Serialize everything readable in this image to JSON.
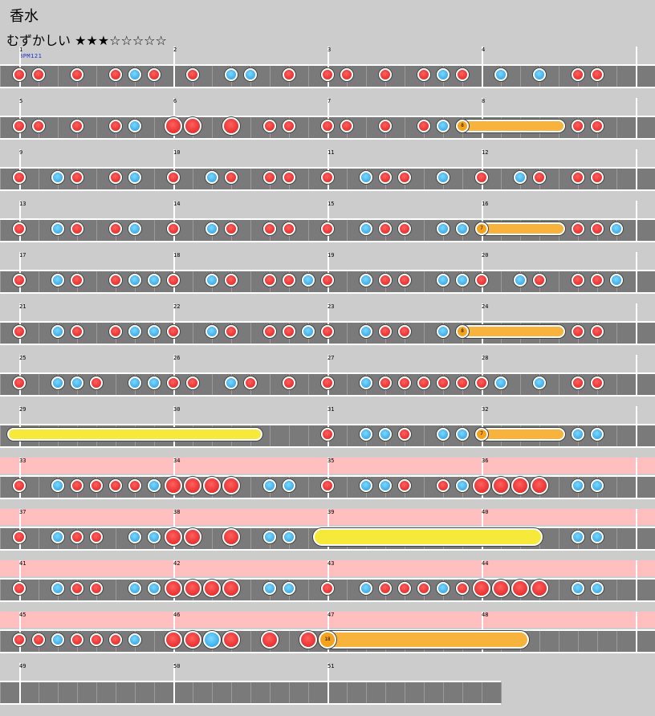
{
  "song_title": "香水",
  "difficulty_label": "むずかしい",
  "difficulty_stars": "★★★☆☆☆☆☆",
  "bpm_label": "BPM121",
  "colors": {
    "background": "#cccccc",
    "track": "#7a7a7a",
    "gogo_band": "#ffbfbf",
    "don": "#e83030",
    "ka": "#3aaee8",
    "roll": "#f7b33c",
    "balloon": "#f7e93a"
  },
  "icons": {
    "don": "red-note-icon",
    "ka": "blue-note-icon",
    "roll": "drumroll-icon",
    "balloon": "balloon-icon"
  },
  "rows": [
    {
      "measures": [
        "1",
        "2",
        "3",
        "4"
      ],
      "gogo": false,
      "notes": [
        [
          0,
          "d",
          0
        ],
        [
          1,
          "d",
          0
        ],
        [
          3,
          "d",
          0
        ],
        [
          5,
          "d",
          0
        ],
        [
          6,
          "k",
          0
        ],
        [
          7,
          "d",
          0
        ],
        [
          9,
          "d",
          0
        ],
        [
          11,
          "k",
          0
        ],
        [
          12,
          "k",
          0
        ],
        [
          14,
          "d",
          0
        ],
        [
          16,
          "d",
          0
        ],
        [
          17,
          "d",
          0
        ],
        [
          19,
          "d",
          0
        ],
        [
          21,
          "d",
          0
        ],
        [
          22,
          "k",
          0
        ],
        [
          23,
          "d",
          0
        ],
        [
          25,
          "k",
          0
        ],
        [
          27,
          "k",
          0
        ],
        [
          29,
          "d",
          0
        ],
        [
          30,
          "d",
          0
        ]
      ],
      "rolls": []
    },
    {
      "measures": [
        "5",
        "6",
        "7",
        "8"
      ],
      "gogo": false,
      "notes": [
        [
          0,
          "d",
          0
        ],
        [
          1,
          "d",
          0
        ],
        [
          3,
          "d",
          0
        ],
        [
          5,
          "d",
          0
        ],
        [
          6,
          "k",
          0
        ],
        [
          8,
          "d",
          1
        ],
        [
          9,
          "d",
          1
        ],
        [
          11,
          "d",
          1
        ],
        [
          13,
          "d",
          0
        ],
        [
          14,
          "d",
          0
        ],
        [
          16,
          "d",
          0
        ],
        [
          17,
          "d",
          0
        ],
        [
          19,
          "d",
          0
        ],
        [
          21,
          "d",
          0
        ],
        [
          22,
          "k",
          0
        ],
        [
          29,
          "d",
          0
        ],
        [
          30,
          "d",
          0
        ]
      ],
      "rolls": [
        {
          "start": 23,
          "end": 28,
          "kind": "orange",
          "head": "8",
          "big": 0
        }
      ]
    },
    {
      "measures": [
        "9",
        "10",
        "11",
        "12"
      ],
      "gogo": false,
      "notes": [
        [
          0,
          "d",
          0
        ],
        [
          2,
          "k",
          0
        ],
        [
          3,
          "d",
          0
        ],
        [
          5,
          "d",
          0
        ],
        [
          6,
          "k",
          0
        ],
        [
          8,
          "d",
          0
        ],
        [
          10,
          "k",
          0
        ],
        [
          11,
          "d",
          0
        ],
        [
          13,
          "d",
          0
        ],
        [
          14,
          "d",
          0
        ],
        [
          16,
          "d",
          0
        ],
        [
          18,
          "k",
          0
        ],
        [
          19,
          "d",
          0
        ],
        [
          20,
          "d",
          0
        ],
        [
          22,
          "k",
          0
        ],
        [
          24,
          "d",
          0
        ],
        [
          26,
          "k",
          0
        ],
        [
          27,
          "d",
          0
        ],
        [
          29,
          "d",
          0
        ],
        [
          30,
          "d",
          0
        ]
      ],
      "rolls": []
    },
    {
      "measures": [
        "13",
        "14",
        "15",
        "16"
      ],
      "gogo": false,
      "notes": [
        [
          0,
          "d",
          0
        ],
        [
          2,
          "k",
          0
        ],
        [
          3,
          "d",
          0
        ],
        [
          5,
          "d",
          0
        ],
        [
          6,
          "k",
          0
        ],
        [
          8,
          "d",
          0
        ],
        [
          10,
          "k",
          0
        ],
        [
          11,
          "d",
          0
        ],
        [
          13,
          "d",
          0
        ],
        [
          14,
          "d",
          0
        ],
        [
          16,
          "d",
          0
        ],
        [
          18,
          "k",
          0
        ],
        [
          19,
          "d",
          0
        ],
        [
          20,
          "d",
          0
        ],
        [
          22,
          "k",
          0
        ],
        [
          23,
          "k",
          0
        ],
        [
          29,
          "d",
          0
        ],
        [
          30,
          "d",
          0
        ],
        [
          31,
          "k",
          0
        ]
      ],
      "rolls": [
        {
          "start": 24,
          "end": 28,
          "kind": "orange",
          "head": "7",
          "big": 0
        }
      ]
    },
    {
      "measures": [
        "17",
        "18",
        "19",
        "20"
      ],
      "gogo": false,
      "notes": [
        [
          0,
          "d",
          0
        ],
        [
          2,
          "k",
          0
        ],
        [
          3,
          "d",
          0
        ],
        [
          5,
          "d",
          0
        ],
        [
          6,
          "k",
          0
        ],
        [
          7,
          "k",
          0
        ],
        [
          8,
          "d",
          0
        ],
        [
          10,
          "k",
          0
        ],
        [
          11,
          "d",
          0
        ],
        [
          13,
          "d",
          0
        ],
        [
          14,
          "d",
          0
        ],
        [
          15,
          "k",
          0
        ],
        [
          16,
          "d",
          0
        ],
        [
          18,
          "k",
          0
        ],
        [
          19,
          "d",
          0
        ],
        [
          20,
          "d",
          0
        ],
        [
          22,
          "k",
          0
        ],
        [
          23,
          "k",
          0
        ],
        [
          24,
          "d",
          0
        ],
        [
          26,
          "k",
          0
        ],
        [
          27,
          "d",
          0
        ],
        [
          29,
          "d",
          0
        ],
        [
          30,
          "d",
          0
        ],
        [
          31,
          "k",
          0
        ]
      ],
      "rolls": []
    },
    {
      "measures": [
        "21",
        "22",
        "23",
        "24"
      ],
      "gogo": false,
      "notes": [
        [
          0,
          "d",
          0
        ],
        [
          2,
          "k",
          0
        ],
        [
          3,
          "d",
          0
        ],
        [
          5,
          "d",
          0
        ],
        [
          6,
          "k",
          0
        ],
        [
          7,
          "k",
          0
        ],
        [
          8,
          "d",
          0
        ],
        [
          10,
          "k",
          0
        ],
        [
          11,
          "d",
          0
        ],
        [
          13,
          "d",
          0
        ],
        [
          14,
          "d",
          0
        ],
        [
          15,
          "k",
          0
        ],
        [
          16,
          "d",
          0
        ],
        [
          18,
          "k",
          0
        ],
        [
          19,
          "d",
          0
        ],
        [
          20,
          "d",
          0
        ],
        [
          22,
          "k",
          0
        ],
        [
          29,
          "d",
          0
        ],
        [
          30,
          "d",
          0
        ]
      ],
      "rolls": [
        {
          "start": 23,
          "end": 28,
          "kind": "orange",
          "head": "8",
          "big": 0
        }
      ]
    },
    {
      "measures": [
        "25",
        "26",
        "27",
        "28"
      ],
      "gogo": false,
      "notes": [
        [
          0,
          "d",
          0
        ],
        [
          2,
          "k",
          0
        ],
        [
          3,
          "k",
          0
        ],
        [
          4,
          "d",
          0
        ],
        [
          6,
          "k",
          0
        ],
        [
          7,
          "k",
          0
        ],
        [
          8,
          "d",
          0
        ],
        [
          9,
          "d",
          0
        ],
        [
          11,
          "k",
          0
        ],
        [
          12,
          "d",
          0
        ],
        [
          14,
          "d",
          0
        ],
        [
          16,
          "d",
          0
        ],
        [
          18,
          "k",
          0
        ],
        [
          19,
          "d",
          0
        ],
        [
          20,
          "d",
          0
        ],
        [
          21,
          "d",
          0
        ],
        [
          22,
          "d",
          0
        ],
        [
          23,
          "d",
          0
        ],
        [
          24,
          "d",
          0
        ],
        [
          25,
          "k",
          0
        ],
        [
          27,
          "k",
          0
        ],
        [
          29,
          "d",
          0
        ],
        [
          30,
          "d",
          0
        ]
      ],
      "rolls": []
    },
    {
      "measures": [
        "29",
        "30",
        "31",
        "32"
      ],
      "gogo": false,
      "notes": [
        [
          16,
          "d",
          0
        ],
        [
          18,
          "k",
          0
        ],
        [
          19,
          "k",
          0
        ],
        [
          20,
          "d",
          0
        ],
        [
          22,
          "k",
          0
        ],
        [
          23,
          "k",
          0
        ],
        [
          29,
          "k",
          0
        ],
        [
          30,
          "k",
          0
        ]
      ],
      "rolls": [
        {
          "start": -0.3,
          "end": 12.3,
          "kind": "yellow",
          "head": "",
          "big": 0
        },
        {
          "start": 24,
          "end": 28,
          "kind": "orange",
          "head": "7",
          "big": 0
        }
      ]
    },
    {
      "measures": [
        "33",
        "34",
        "35",
        "36"
      ],
      "gogo": true,
      "notes": [
        [
          0,
          "d",
          0
        ],
        [
          2,
          "k",
          0
        ],
        [
          3,
          "d",
          0
        ],
        [
          4,
          "d",
          0
        ],
        [
          5,
          "d",
          0
        ],
        [
          6,
          "d",
          0
        ],
        [
          7,
          "k",
          0
        ],
        [
          8,
          "d",
          1
        ],
        [
          9,
          "d",
          1
        ],
        [
          10,
          "d",
          1
        ],
        [
          11,
          "d",
          1
        ],
        [
          13,
          "k",
          0
        ],
        [
          14,
          "k",
          0
        ],
        [
          16,
          "d",
          0
        ],
        [
          18,
          "k",
          0
        ],
        [
          19,
          "k",
          0
        ],
        [
          20,
          "d",
          0
        ],
        [
          22,
          "d",
          0
        ],
        [
          23,
          "k",
          0
        ],
        [
          24,
          "d",
          1
        ],
        [
          25,
          "d",
          1
        ],
        [
          26,
          "d",
          1
        ],
        [
          27,
          "d",
          1
        ],
        [
          29,
          "k",
          0
        ],
        [
          30,
          "k",
          0
        ]
      ],
      "rolls": []
    },
    {
      "measures": [
        "37",
        "38",
        "39",
        "40"
      ],
      "gogo": true,
      "notes": [
        [
          0,
          "d",
          0
        ],
        [
          2,
          "k",
          0
        ],
        [
          3,
          "d",
          0
        ],
        [
          4,
          "d",
          0
        ],
        [
          6,
          "k",
          0
        ],
        [
          7,
          "k",
          0
        ],
        [
          8,
          "d",
          1
        ],
        [
          9,
          "d",
          1
        ],
        [
          11,
          "d",
          1
        ],
        [
          13,
          "k",
          0
        ],
        [
          14,
          "k",
          0
        ],
        [
          29,
          "k",
          0
        ],
        [
          30,
          "k",
          0
        ]
      ],
      "rolls": [
        {
          "start": 15.7,
          "end": 26.7,
          "kind": "yellow",
          "head": "",
          "big": 1
        }
      ]
    },
    {
      "measures": [
        "41",
        "42",
        "43",
        "44"
      ],
      "gogo": true,
      "notes": [
        [
          0,
          "d",
          0
        ],
        [
          2,
          "k",
          0
        ],
        [
          3,
          "d",
          0
        ],
        [
          4,
          "d",
          0
        ],
        [
          6,
          "k",
          0
        ],
        [
          7,
          "k",
          0
        ],
        [
          8,
          "d",
          1
        ],
        [
          9,
          "d",
          1
        ],
        [
          10,
          "d",
          1
        ],
        [
          11,
          "d",
          1
        ],
        [
          13,
          "k",
          0
        ],
        [
          14,
          "k",
          0
        ],
        [
          16,
          "d",
          0
        ],
        [
          18,
          "k",
          0
        ],
        [
          19,
          "d",
          0
        ],
        [
          20,
          "d",
          0
        ],
        [
          21,
          "d",
          0
        ],
        [
          22,
          "k",
          0
        ],
        [
          23,
          "d",
          0
        ],
        [
          24,
          "d",
          1
        ],
        [
          25,
          "d",
          1
        ],
        [
          26,
          "d",
          1
        ],
        [
          27,
          "d",
          1
        ],
        [
          29,
          "k",
          0
        ],
        [
          30,
          "k",
          0
        ]
      ],
      "rolls": []
    },
    {
      "measures": [
        "45",
        "46",
        "47",
        "48"
      ],
      "gogo": true,
      "notes": [
        [
          0,
          "d",
          0
        ],
        [
          1,
          "d",
          0
        ],
        [
          2,
          "k",
          0
        ],
        [
          3,
          "d",
          0
        ],
        [
          4,
          "d",
          0
        ],
        [
          5,
          "d",
          0
        ],
        [
          6,
          "k",
          0
        ],
        [
          8,
          "d",
          1
        ],
        [
          9,
          "d",
          1
        ],
        [
          10,
          "k",
          1
        ],
        [
          11,
          "d",
          1
        ],
        [
          13,
          "d",
          1
        ],
        [
          15,
          "d",
          1
        ]
      ],
      "rolls": [
        {
          "start": 16,
          "end": 26,
          "kind": "orange",
          "head": "18",
          "big": 1
        }
      ]
    },
    {
      "measures": [
        "49",
        "50",
        "51"
      ],
      "gogo": false,
      "empty": true,
      "notes": [],
      "rolls": []
    }
  ]
}
